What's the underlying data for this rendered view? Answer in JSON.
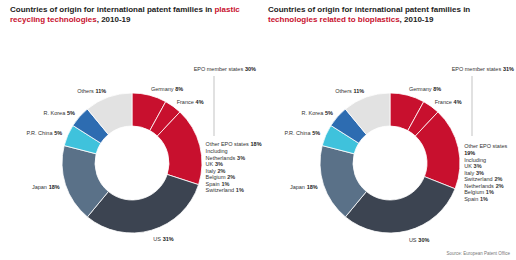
{
  "chart_data": [
    {
      "type": "donut",
      "title": "Countries of origin for international patent families in plastic recycling technologies, 2010-19",
      "title_highlight": "plastic recycling technologies",
      "categories": [
        "Germany",
        "France",
        "Other EPO states",
        "US",
        "Japan",
        "P.R. China",
        "R. Korea",
        "Others"
      ],
      "values": [
        8,
        4,
        18,
        31,
        18,
        5,
        5,
        11
      ],
      "value_labels": [
        "8%",
        "4%",
        "18%",
        "31%",
        "18%",
        "5%",
        "5%",
        "11%"
      ],
      "colors": [
        "#c8102e",
        "#c8102e",
        "#c8102e",
        "#3c4451",
        "#5a7188",
        "#3fc2dc",
        "#2d6cb1",
        "#e2e2e2"
      ],
      "data_labels": true,
      "annotations": {
        "group": {
          "label": "EPO member states",
          "value": 30,
          "value_label": "30%"
        },
        "detail_title": "Including",
        "details": [
          {
            "label": "Netherlands",
            "value": 3,
            "value_label": "3%"
          },
          {
            "label": "UK",
            "value": 3,
            "value_label": "3%"
          },
          {
            "label": "Italy",
            "value": 2,
            "value_label": "2%"
          },
          {
            "label": "Belgium",
            "value": 2,
            "value_label": "2%"
          },
          {
            "label": "Spain",
            "value": 1,
            "value_label": "1%"
          },
          {
            "label": "Switzerland",
            "value": 1,
            "value_label": "1%"
          }
        ]
      }
    },
    {
      "type": "donut",
      "title": "Countries of origin for international patent families in technologies related to bioplastics, 2010-19",
      "title_highlight": "technologies related to bioplastics",
      "categories": [
        "Germany",
        "France",
        "Other EPO states",
        "US",
        "Japan",
        "P.R. China",
        "R. Korea",
        "Others"
      ],
      "values": [
        8,
        4,
        19,
        30,
        18,
        5,
        5,
        11
      ],
      "value_labels": [
        "8%",
        "4%",
        "19%",
        "30%",
        "18%",
        "5%",
        "5%",
        "11%"
      ],
      "colors": [
        "#c8102e",
        "#c8102e",
        "#c8102e",
        "#3c4451",
        "#5a7188",
        "#3fc2dc",
        "#2d6cb1",
        "#e2e2e2"
      ],
      "data_labels": true,
      "annotations": {
        "group": {
          "label": "EPO member states",
          "value": 31,
          "value_label": "31%"
        },
        "detail_title": "Including",
        "details": [
          {
            "label": "UK",
            "value": 3,
            "value_label": "3%"
          },
          {
            "label": "Italy",
            "value": 3,
            "value_label": "3%"
          },
          {
            "label": "Switzerland",
            "value": 2,
            "value_label": "2%"
          },
          {
            "label": "Netherlands",
            "value": 2,
            "value_label": "2%"
          },
          {
            "label": "Belgium",
            "value": 1,
            "value_label": "1%"
          },
          {
            "label": "Spain",
            "value": 1,
            "value_label": "1%"
          }
        ]
      }
    }
  ],
  "source": "Source: European Patent Office"
}
